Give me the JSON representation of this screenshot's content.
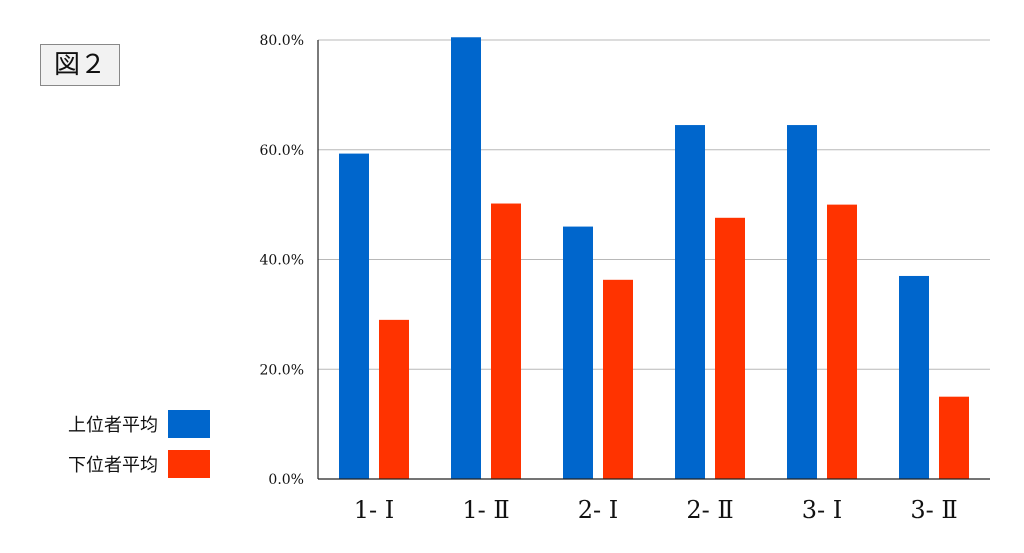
{
  "figure_label": "図２",
  "chart_data": {
    "type": "bar",
    "categories": [
      "1- Ⅰ",
      "1- Ⅱ",
      "2- Ⅰ",
      "2- Ⅱ",
      "3- Ⅰ",
      "3- Ⅱ"
    ],
    "series": [
      {
        "name": "上位者平均",
        "color": "#0066cc",
        "values": [
          59.3,
          80.5,
          46.0,
          64.5,
          64.5,
          37.0
        ]
      },
      {
        "name": "下位者平均",
        "color": "#ff3300",
        "values": [
          29.0,
          50.2,
          36.3,
          47.6,
          50.0,
          15.0
        ]
      }
    ],
    "yticks": [
      "0.0%",
      "20.0%",
      "40.0%",
      "60.0%",
      "80.0%"
    ],
    "ylim": [
      0,
      80
    ],
    "grid": true,
    "legend_position": "left"
  }
}
